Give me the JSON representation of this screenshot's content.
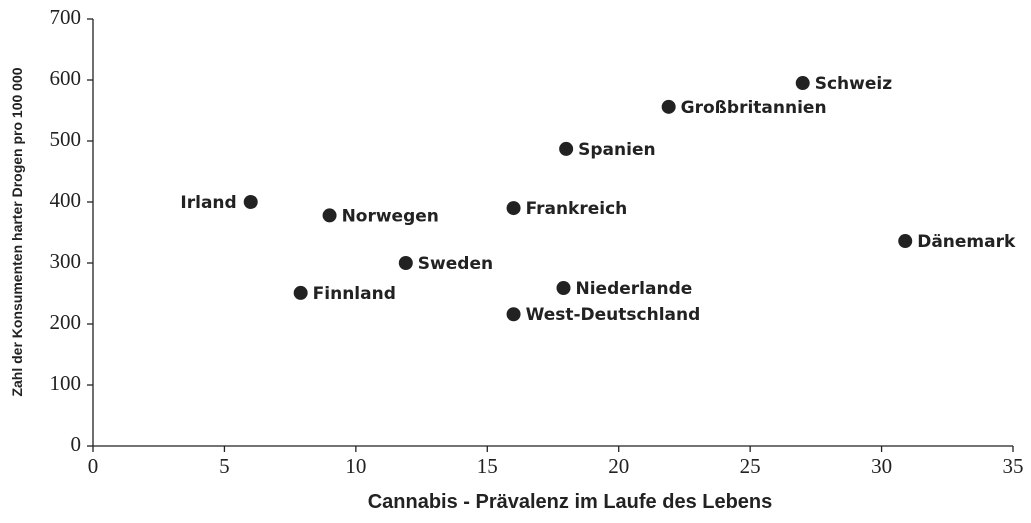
{
  "chart_data": {
    "type": "scatter",
    "x_label": "Cannabis - Prävalenz im Laufe des Lebens",
    "y_label": "Zahl der Konsumenten harter Drogen pro 100 000",
    "labels": [
      "Irland",
      "Norwegen",
      "Finnland",
      "Sweden",
      "Frankreich",
      "West-Deutschland",
      "Niederlande",
      "Spanien",
      "Großbritannien",
      "Schweiz",
      "Dänemark"
    ],
    "x": [
      6,
      9,
      7.9,
      11.9,
      16,
      16,
      17.9,
      18,
      21.9,
      27,
      30.9
    ],
    "values": [
      400,
      378,
      251,
      300,
      390,
      216,
      259,
      487,
      556,
      595,
      336
    ],
    "color": "#222222",
    "xlim": [
      0,
      35
    ],
    "xticks": [
      0,
      5,
      10,
      15,
      20,
      25,
      30,
      35
    ],
    "ylim": [
      0,
      700
    ],
    "yticks": [
      0,
      100,
      200,
      300,
      400,
      500,
      600,
      700
    ]
  }
}
